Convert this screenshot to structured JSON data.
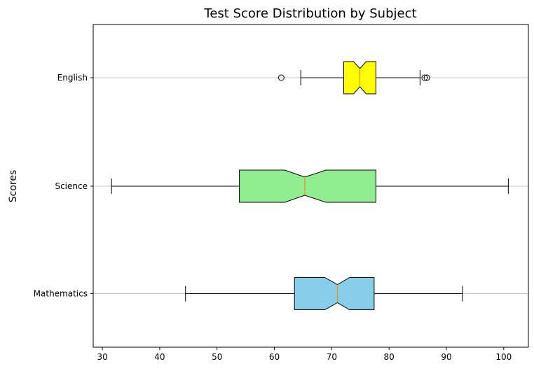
{
  "chart_data": {
    "type": "boxplot",
    "orientation": "horizontal",
    "notched": true,
    "title": "Test Score Distribution by Subject",
    "xlabel": "",
    "ylabel": "Scores",
    "xlim": [
      28.4,
      104.3
    ],
    "xticks": [
      30,
      40,
      50,
      60,
      70,
      80,
      90,
      100
    ],
    "grid": "y-axis only",
    "categories": [
      "Mathematics",
      "Science",
      "English"
    ],
    "series": [
      {
        "category": "Mathematics",
        "color": "#87CEEB",
        "whisker_low": 44.5,
        "q1": 63.5,
        "notch_low": 68.8,
        "median": 71.0,
        "notch_high": 73.1,
        "q3": 77.4,
        "whisker_high": 92.8,
        "outliers": []
      },
      {
        "category": "Science",
        "color": "#90EE90",
        "whisker_low": 31.6,
        "q1": 53.9,
        "notch_low": 61.8,
        "median": 65.3,
        "notch_high": 69.0,
        "q3": 77.7,
        "whisker_high": 100.8,
        "outliers": []
      },
      {
        "category": "English",
        "color": "#FFFF00",
        "whisker_low": 64.6,
        "q1": 72.1,
        "notch_low": 73.8,
        "median": 74.9,
        "notch_high": 76.0,
        "q3": 77.7,
        "whisker_high": 85.4,
        "outliers": [
          61.2,
          86.2,
          86.6
        ]
      }
    ],
    "median_color": "#FF8C00"
  }
}
